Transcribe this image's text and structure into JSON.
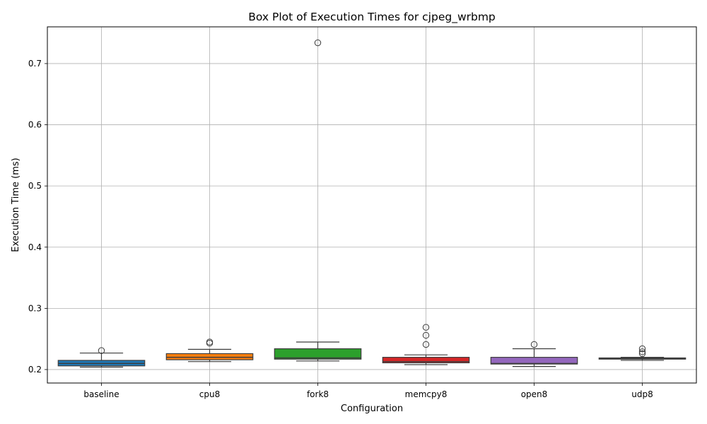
{
  "chart_data": {
    "type": "box",
    "title": "Box Plot of Execution Times for cjpeg_wrbmp",
    "xlabel": "Configuration",
    "ylabel": "Execution Time (ms)",
    "ylim": [
      0.178,
      0.76
    ],
    "yticks": [
      0.2,
      0.3,
      0.4,
      0.5,
      0.6,
      0.7
    ],
    "ytick_labels": [
      "0.2",
      "0.3",
      "0.4",
      "0.5",
      "0.6",
      "0.7"
    ],
    "grid": true,
    "categories": [
      "baseline",
      "cpu8",
      "fork8",
      "memcpy8",
      "open8",
      "udp8"
    ],
    "boxes": [
      {
        "name": "baseline",
        "color": "#1f77b4",
        "whisker_low": 0.204,
        "q1": 0.206,
        "median": 0.21,
        "q3": 0.215,
        "whisker_high": 0.227,
        "outliers": [
          0.231
        ]
      },
      {
        "name": "cpu8",
        "color": "#ff7f0e",
        "whisker_low": 0.213,
        "q1": 0.216,
        "median": 0.22,
        "q3": 0.226,
        "whisker_high": 0.233,
        "outliers": [
          0.243,
          0.245
        ]
      },
      {
        "name": "fork8",
        "color": "#2ca02c",
        "whisker_low": 0.214,
        "q1": 0.217,
        "median": 0.219,
        "q3": 0.234,
        "whisker_high": 0.245,
        "outliers": [
          0.734
        ]
      },
      {
        "name": "memcpy8",
        "color": "#d62728",
        "whisker_low": 0.208,
        "q1": 0.211,
        "median": 0.213,
        "q3": 0.22,
        "whisker_high": 0.224,
        "outliers": [
          0.241,
          0.256,
          0.269
        ]
      },
      {
        "name": "open8",
        "color": "#9467bd",
        "whisker_low": 0.205,
        "q1": 0.209,
        "median": 0.21,
        "q3": 0.22,
        "whisker_high": 0.234,
        "outliers": [
          0.241
        ]
      },
      {
        "name": "udp8",
        "color": "#8c564b",
        "whisker_low": 0.215,
        "q1": 0.217,
        "median": 0.218,
        "q3": 0.219,
        "whisker_high": 0.22,
        "outliers": [
          0.226,
          0.229,
          0.234
        ]
      }
    ]
  }
}
